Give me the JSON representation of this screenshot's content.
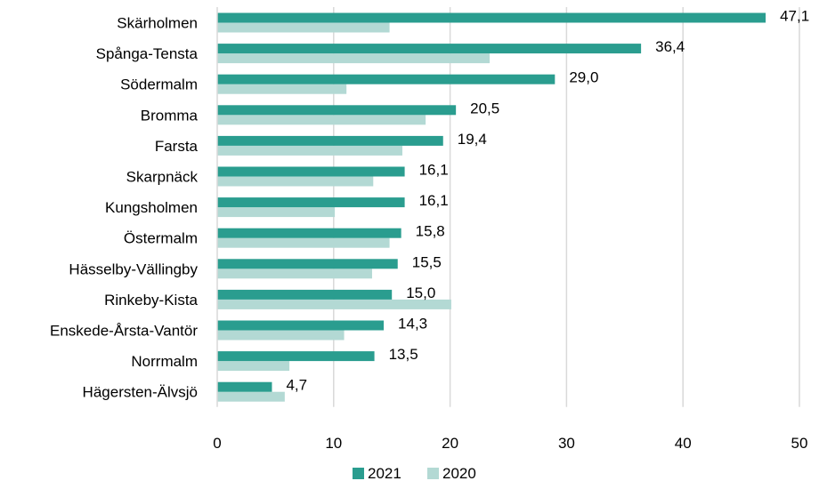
{
  "chart_data": {
    "type": "bar",
    "orientation": "horizontal",
    "title": "",
    "xlabel": "",
    "ylabel": "",
    "xlim": [
      0,
      50
    ],
    "xticks": [
      0,
      10,
      20,
      30,
      40,
      50
    ],
    "grid": "vertical",
    "legend_position": "bottom",
    "categories": [
      "Skärholmen",
      "Spånga-Tensta",
      "Södermalm",
      "Bromma",
      "Farsta",
      "Skarpnäck",
      "Kungsholmen",
      "Östermalm",
      "Hässelby-Vällingby",
      "Rinkeby-Kista",
      "Enskede-Årsta-Vantör",
      "Norrmalm",
      "Hägersten-Älvsjö"
    ],
    "series": [
      {
        "name": "2021",
        "color": "#2a9d8f",
        "values": [
          47.1,
          36.4,
          29.0,
          20.5,
          19.4,
          16.1,
          16.1,
          15.8,
          15.5,
          15.0,
          14.3,
          13.5,
          4.7
        ],
        "labels": [
          "47,1",
          "36,4",
          "29,0",
          "20,5",
          "19,4",
          "16,1",
          "16,1",
          "15,8",
          "15,5",
          "15,0",
          "14,3",
          "13,5",
          "4,7"
        ]
      },
      {
        "name": "2020",
        "color": "#b3d9d4",
        "values": [
          14.8,
          23.4,
          11.1,
          17.9,
          15.9,
          13.4,
          10.1,
          14.8,
          13.3,
          20.1,
          10.9,
          6.2,
          5.8
        ]
      }
    ]
  }
}
